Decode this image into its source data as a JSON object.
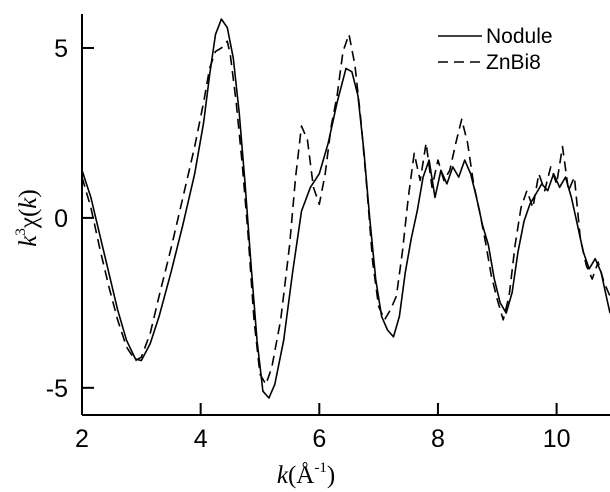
{
  "chart_data": {
    "type": "line",
    "title": "",
    "xlabel": {
      "prefix": "k",
      "paren_open": "(Å",
      "sup": "-1",
      "paren_close": ")"
    },
    "ylabel": {
      "prefix": "k",
      "sup": "3",
      "chi": "χ(",
      "k": "k",
      "close": ")"
    },
    "xlim": [
      2,
      10.9
    ],
    "ylim": [
      -5.8,
      6
    ],
    "x_ticks": [
      2,
      4,
      6,
      8,
      10
    ],
    "x_tick_labels": [
      "2",
      "4",
      "6",
      "8",
      "10"
    ],
    "y_ticks": [
      -5,
      0,
      5
    ],
    "y_tick_labels": [
      "-5",
      "0",
      "5"
    ],
    "legend_position": "top-right",
    "series": [
      {
        "name": "Nodule",
        "style": "solid",
        "color": "#000000",
        "points": [
          [
            2.0,
            1.4
          ],
          [
            2.15,
            0.6
          ],
          [
            2.3,
            -0.5
          ],
          [
            2.45,
            -1.6
          ],
          [
            2.6,
            -2.7
          ],
          [
            2.75,
            -3.6
          ],
          [
            2.9,
            -4.15
          ],
          [
            3.0,
            -4.2
          ],
          [
            3.15,
            -3.7
          ],
          [
            3.3,
            -2.9
          ],
          [
            3.5,
            -1.6
          ],
          [
            3.7,
            -0.2
          ],
          [
            3.9,
            1.3
          ],
          [
            4.05,
            2.8
          ],
          [
            4.15,
            4.2
          ],
          [
            4.25,
            5.4
          ],
          [
            4.35,
            5.85
          ],
          [
            4.45,
            5.6
          ],
          [
            4.55,
            4.7
          ],
          [
            4.65,
            3.1
          ],
          [
            4.75,
            1.0
          ],
          [
            4.85,
            -1.4
          ],
          [
            4.95,
            -3.6
          ],
          [
            5.05,
            -5.1
          ],
          [
            5.15,
            -5.3
          ],
          [
            5.25,
            -4.9
          ],
          [
            5.4,
            -3.6
          ],
          [
            5.55,
            -1.6
          ],
          [
            5.7,
            0.2
          ],
          [
            5.85,
            0.9
          ],
          [
            6.0,
            1.3
          ],
          [
            6.15,
            2.2
          ],
          [
            6.3,
            3.4
          ],
          [
            6.45,
            4.4
          ],
          [
            6.55,
            4.3
          ],
          [
            6.65,
            3.6
          ],
          [
            6.75,
            2.0
          ],
          [
            6.85,
            0.0
          ],
          [
            6.95,
            -1.8
          ],
          [
            7.05,
            -2.9
          ],
          [
            7.15,
            -3.3
          ],
          [
            7.25,
            -3.5
          ],
          [
            7.35,
            -2.9
          ],
          [
            7.45,
            -1.6
          ],
          [
            7.55,
            -0.6
          ],
          [
            7.65,
            0.2
          ],
          [
            7.75,
            1.2
          ],
          [
            7.85,
            1.7
          ],
          [
            7.95,
            0.6
          ],
          [
            8.05,
            1.4
          ],
          [
            8.15,
            1.0
          ],
          [
            8.25,
            1.5
          ],
          [
            8.35,
            1.2
          ],
          [
            8.45,
            1.7
          ],
          [
            8.55,
            1.3
          ],
          [
            8.65,
            0.6
          ],
          [
            8.75,
            -0.2
          ],
          [
            8.85,
            -0.8
          ],
          [
            8.95,
            -1.8
          ],
          [
            9.05,
            -2.5
          ],
          [
            9.15,
            -2.8
          ],
          [
            9.25,
            -2.2
          ],
          [
            9.35,
            -1.0
          ],
          [
            9.45,
            -0.1
          ],
          [
            9.55,
            0.4
          ],
          [
            9.65,
            0.7
          ],
          [
            9.75,
            1.0
          ],
          [
            9.85,
            0.8
          ],
          [
            9.95,
            1.3
          ],
          [
            10.05,
            0.9
          ],
          [
            10.15,
            1.2
          ],
          [
            10.25,
            0.6
          ],
          [
            10.35,
            -0.2
          ],
          [
            10.45,
            -1.0
          ],
          [
            10.55,
            -1.5
          ],
          [
            10.65,
            -1.2
          ],
          [
            10.75,
            -1.6
          ],
          [
            10.85,
            -2.4
          ],
          [
            10.9,
            -2.8
          ]
        ]
      },
      {
        "name": "ZnBi8",
        "style": "dashed",
        "color": "#000000",
        "points": [
          [
            2.0,
            1.2
          ],
          [
            2.15,
            0.3
          ],
          [
            2.3,
            -0.9
          ],
          [
            2.45,
            -2.0
          ],
          [
            2.6,
            -3.0
          ],
          [
            2.75,
            -3.8
          ],
          [
            2.9,
            -4.2
          ],
          [
            3.0,
            -4.1
          ],
          [
            3.15,
            -3.4
          ],
          [
            3.3,
            -2.3
          ],
          [
            3.5,
            -0.9
          ],
          [
            3.7,
            0.6
          ],
          [
            3.9,
            2.1
          ],
          [
            4.05,
            3.4
          ],
          [
            4.15,
            4.4
          ],
          [
            4.25,
            4.9
          ],
          [
            4.35,
            5.0
          ],
          [
            4.45,
            5.2
          ],
          [
            4.5,
            4.8
          ],
          [
            4.6,
            3.4
          ],
          [
            4.7,
            1.6
          ],
          [
            4.8,
            -0.5
          ],
          [
            4.9,
            -3.0
          ],
          [
            5.0,
            -4.6
          ],
          [
            5.1,
            -4.9
          ],
          [
            5.2,
            -4.4
          ],
          [
            5.35,
            -3.0
          ],
          [
            5.5,
            -0.8
          ],
          [
            5.6,
            1.2
          ],
          [
            5.7,
            2.7
          ],
          [
            5.8,
            2.3
          ],
          [
            5.9,
            0.9
          ],
          [
            6.0,
            0.4
          ],
          [
            6.1,
            1.3
          ],
          [
            6.2,
            2.7
          ],
          [
            6.3,
            3.6
          ],
          [
            6.4,
            4.9
          ],
          [
            6.5,
            5.4
          ],
          [
            6.6,
            4.5
          ],
          [
            6.7,
            2.9
          ],
          [
            6.8,
            0.9
          ],
          [
            6.9,
            -1.3
          ],
          [
            7.0,
            -2.6
          ],
          [
            7.1,
            -3.0
          ],
          [
            7.2,
            -2.7
          ],
          [
            7.3,
            -2.3
          ],
          [
            7.4,
            -1.0
          ],
          [
            7.5,
            0.6
          ],
          [
            7.6,
            1.9
          ],
          [
            7.7,
            1.1
          ],
          [
            7.8,
            2.2
          ],
          [
            7.9,
            0.9
          ],
          [
            8.0,
            1.7
          ],
          [
            8.1,
            1.1
          ],
          [
            8.2,
            1.4
          ],
          [
            8.3,
            2.2
          ],
          [
            8.4,
            2.9
          ],
          [
            8.5,
            2.2
          ],
          [
            8.6,
            1.0
          ],
          [
            8.7,
            0.2
          ],
          [
            8.8,
            -0.7
          ],
          [
            8.9,
            -1.7
          ],
          [
            9.0,
            -2.4
          ],
          [
            9.1,
            -3.0
          ],
          [
            9.2,
            -2.3
          ],
          [
            9.3,
            -0.8
          ],
          [
            9.4,
            0.3
          ],
          [
            9.5,
            0.8
          ],
          [
            9.6,
            0.3
          ],
          [
            9.7,
            1.3
          ],
          [
            9.8,
            0.8
          ],
          [
            9.9,
            1.5
          ],
          [
            10.0,
            1.0
          ],
          [
            10.1,
            2.1
          ],
          [
            10.2,
            0.8
          ],
          [
            10.3,
            1.2
          ],
          [
            10.4,
            -0.6
          ],
          [
            10.5,
            -1.4
          ],
          [
            10.6,
            -1.8
          ],
          [
            10.7,
            -1.3
          ],
          [
            10.8,
            -1.9
          ],
          [
            10.9,
            -2.3
          ]
        ]
      }
    ]
  }
}
